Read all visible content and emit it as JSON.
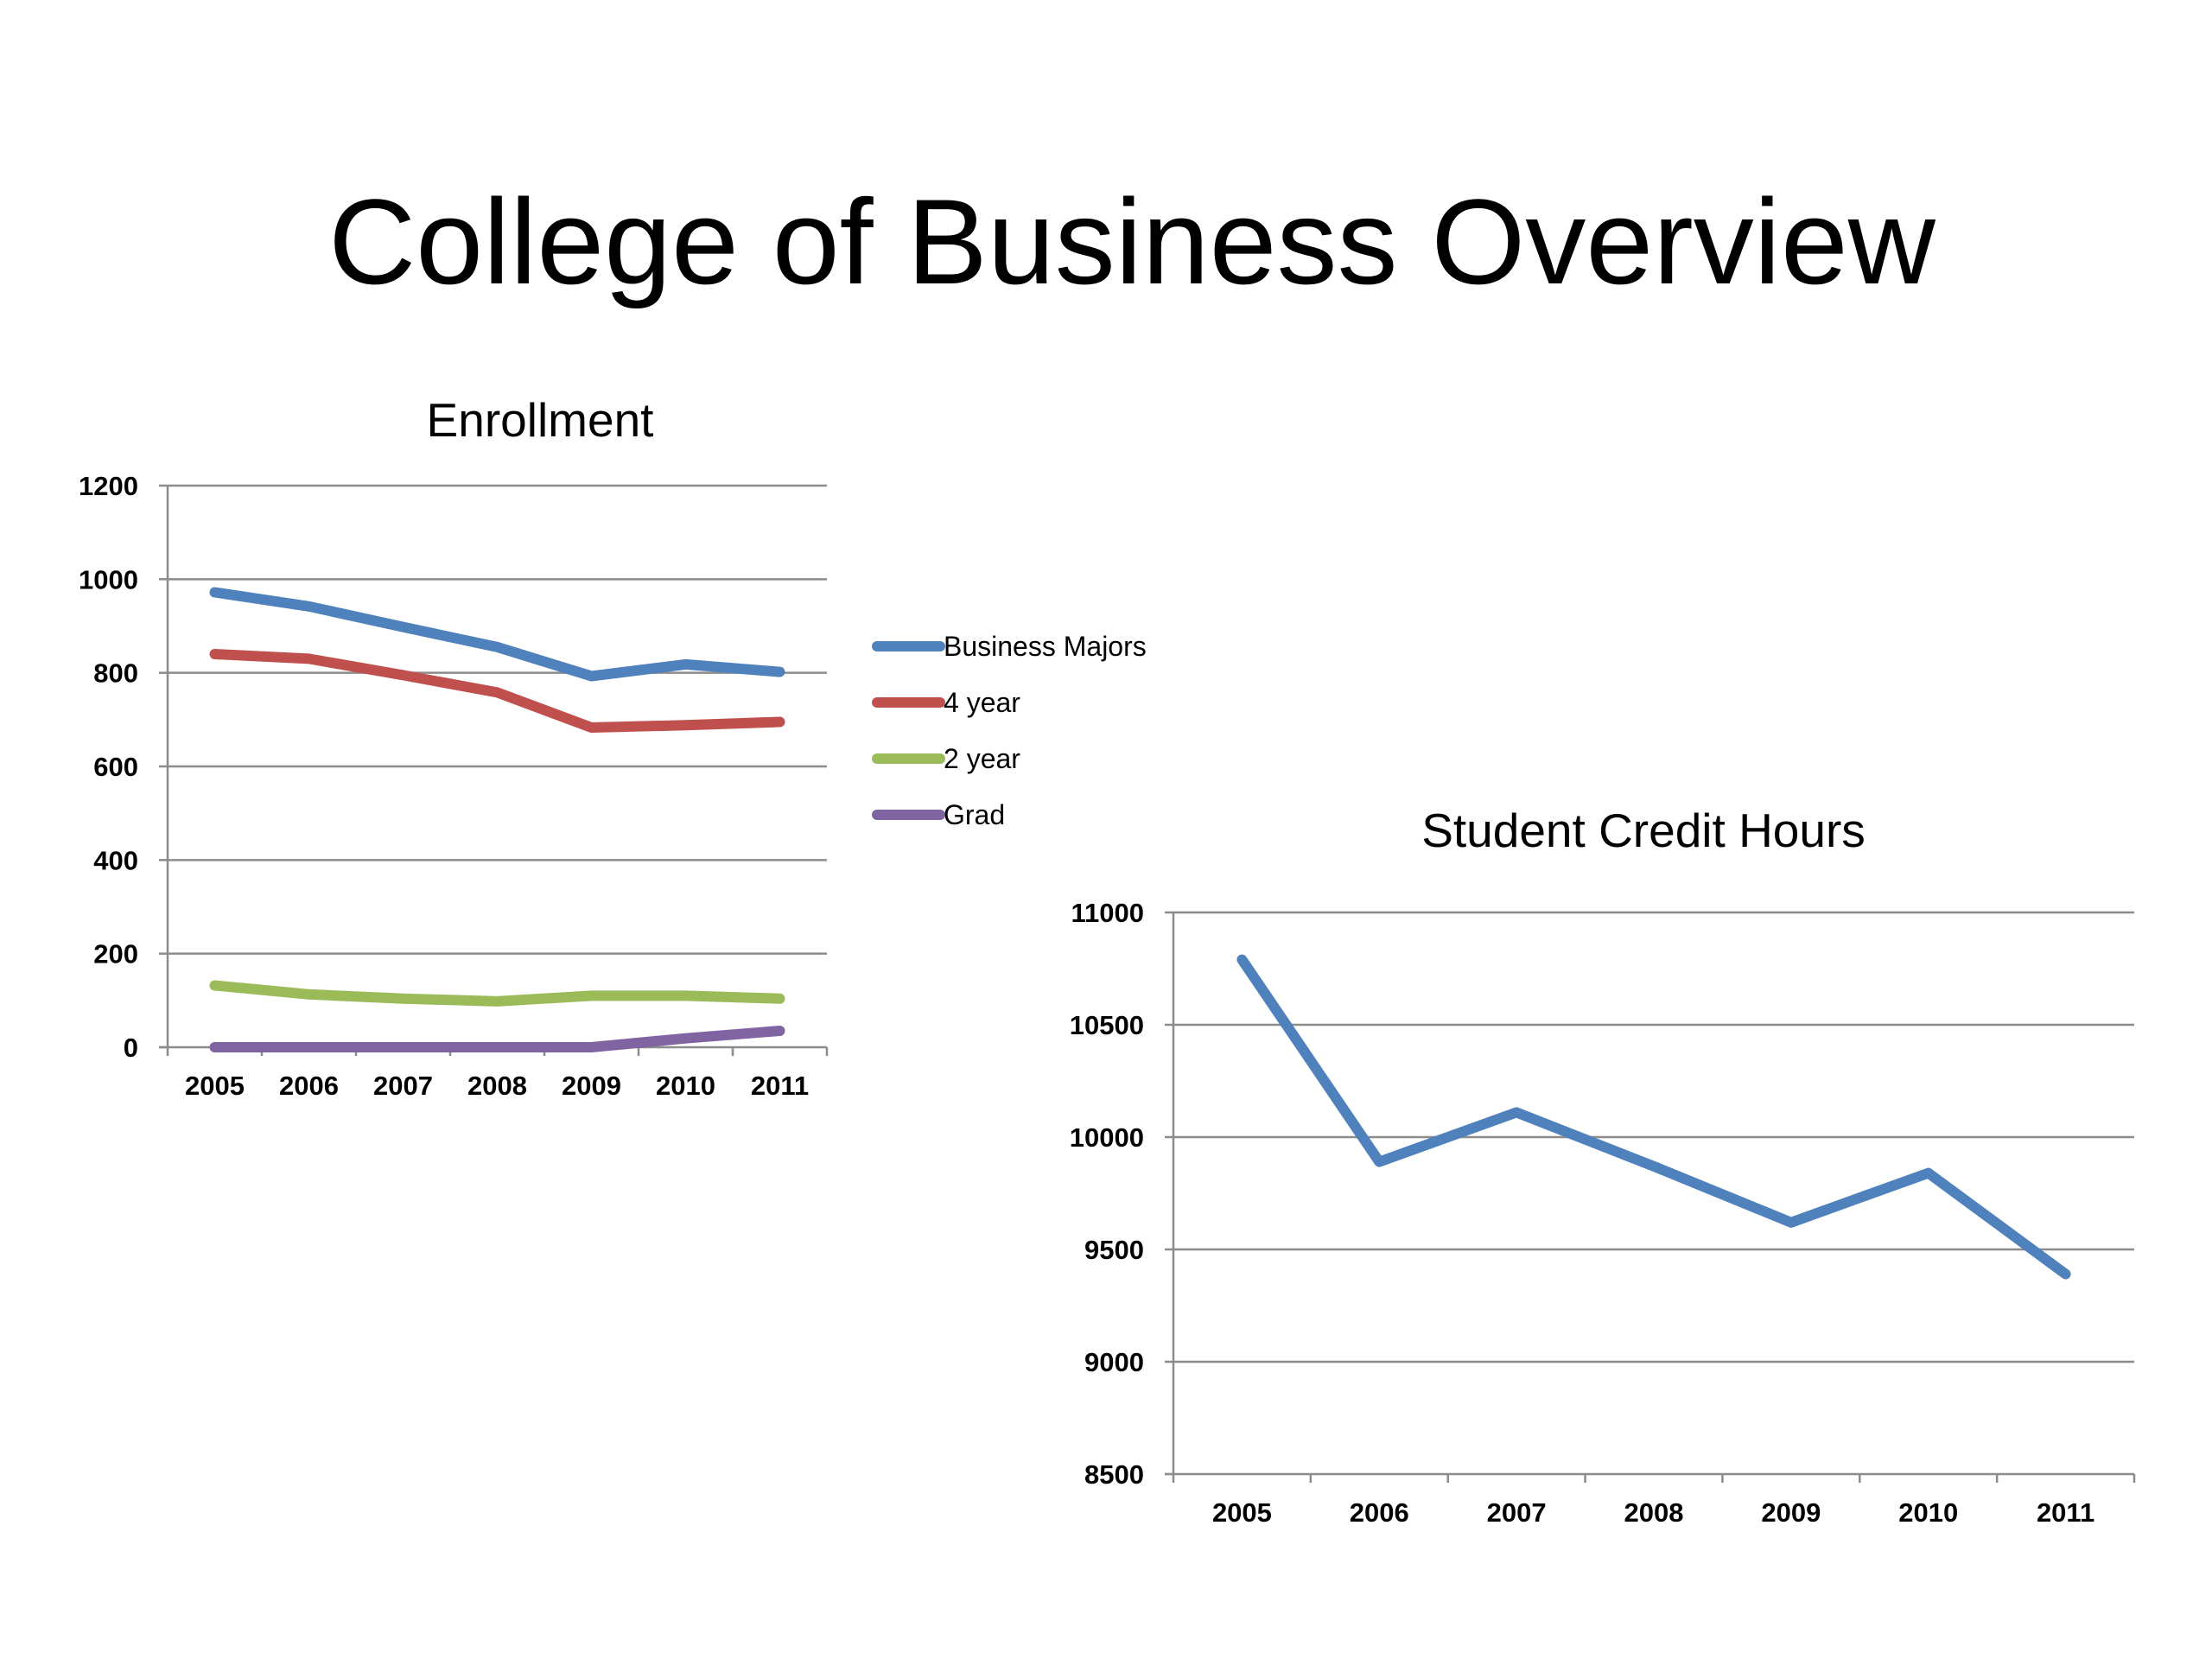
{
  "slide": {
    "title": "College of Business Overview"
  },
  "chart_data": [
    {
      "type": "line",
      "title": "Enrollment",
      "xlabel": "",
      "ylabel": "",
      "categories": [
        "2005",
        "2006",
        "2007",
        "2008",
        "2009",
        "2010",
        "2011"
      ],
      "ylim": [
        0,
        1200
      ],
      "yticks": [
        0,
        200,
        400,
        600,
        800,
        1000,
        1200
      ],
      "grid": true,
      "legend": "right",
      "series": [
        {
          "name": "Business Majors",
          "color": "#4f81bd",
          "values": [
            972,
            942,
            898,
            855,
            793,
            818,
            802
          ]
        },
        {
          "name": "4 year",
          "color": "#c0504d",
          "values": [
            840,
            830,
            795,
            758,
            683,
            688,
            695
          ]
        },
        {
          "name": "2 year",
          "color": "#9bbb59",
          "values": [
            132,
            113,
            104,
            98,
            110,
            110,
            104
          ]
        },
        {
          "name": "Grad",
          "color": "#8064a2",
          "values": [
            0,
            0,
            0,
            0,
            0,
            19,
            35
          ]
        }
      ]
    },
    {
      "type": "line",
      "title": "Student Credit Hours",
      "xlabel": "",
      "ylabel": "",
      "categories": [
        "2005",
        "2006",
        "2007",
        "2008",
        "2009",
        "2010",
        "2011"
      ],
      "ylim": [
        8500,
        11000
      ],
      "yticks": [
        8500,
        9000,
        9500,
        10000,
        10500,
        11000
      ],
      "grid": true,
      "legend": "none",
      "series": [
        {
          "color": "#4f81bd",
          "values": [
            10790,
            9890,
            10110,
            9870,
            9620,
            9840,
            9390
          ]
        }
      ]
    }
  ]
}
